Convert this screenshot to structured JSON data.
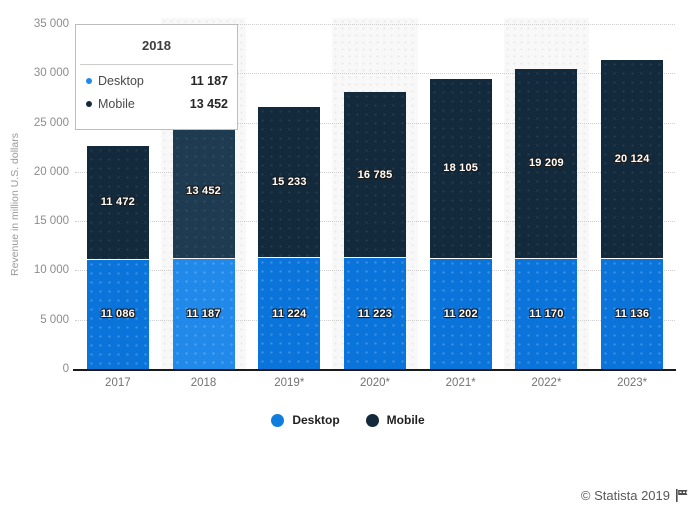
{
  "chart_data": {
    "type": "bar",
    "stacked": true,
    "categories": [
      "2017",
      "2018",
      "2019*",
      "2020*",
      "2021*",
      "2022*",
      "2023*"
    ],
    "series": [
      {
        "name": "Desktop",
        "color": "#0b74da",
        "hover_color": "#2189e9",
        "values": [
          11086,
          11187,
          11224,
          11223,
          11202,
          11170,
          11136
        ],
        "value_labels": [
          "11 086",
          "11 187",
          "11 224",
          "11 223",
          "11 202",
          "11 170",
          "11 136"
        ]
      },
      {
        "name": "Mobile",
        "color": "#132a3d",
        "hover_color": "#1f3b51",
        "values": [
          11472,
          13452,
          15233,
          16785,
          18105,
          19209,
          20124
        ],
        "value_labels": [
          "11 472",
          "13 452",
          "15 233",
          "16 785",
          "18 105",
          "19 209",
          "20 124"
        ]
      }
    ],
    "title": "",
    "xlabel": "",
    "ylabel": "Revenue in million U.S. dollars",
    "ylim": [
      0,
      35000
    ],
    "ytick_step": 5000,
    "ytick_labels": [
      "0",
      "5 000",
      "10 000",
      "15 000",
      "20 000",
      "25 000",
      "30 000",
      "35 000"
    ],
    "grid": "horizontal-dotted",
    "legend_position": "bottom",
    "highlighted_category": "2018",
    "striped_categories": [
      "2018",
      "2020*",
      "2022*"
    ]
  },
  "tooltip": {
    "title": "2018",
    "rows": [
      {
        "label": "Desktop",
        "value": "11 187",
        "bullet_color": "#2189e9"
      },
      {
        "label": "Mobile",
        "value": "13 452",
        "bullet_color": "#132a3d"
      }
    ]
  },
  "legend": {
    "items": [
      {
        "label": "Desktop",
        "color": "#0f7de0"
      },
      {
        "label": "Mobile",
        "color": "#132a3d"
      }
    ]
  },
  "footer": {
    "credit": "© Statista 2019"
  }
}
